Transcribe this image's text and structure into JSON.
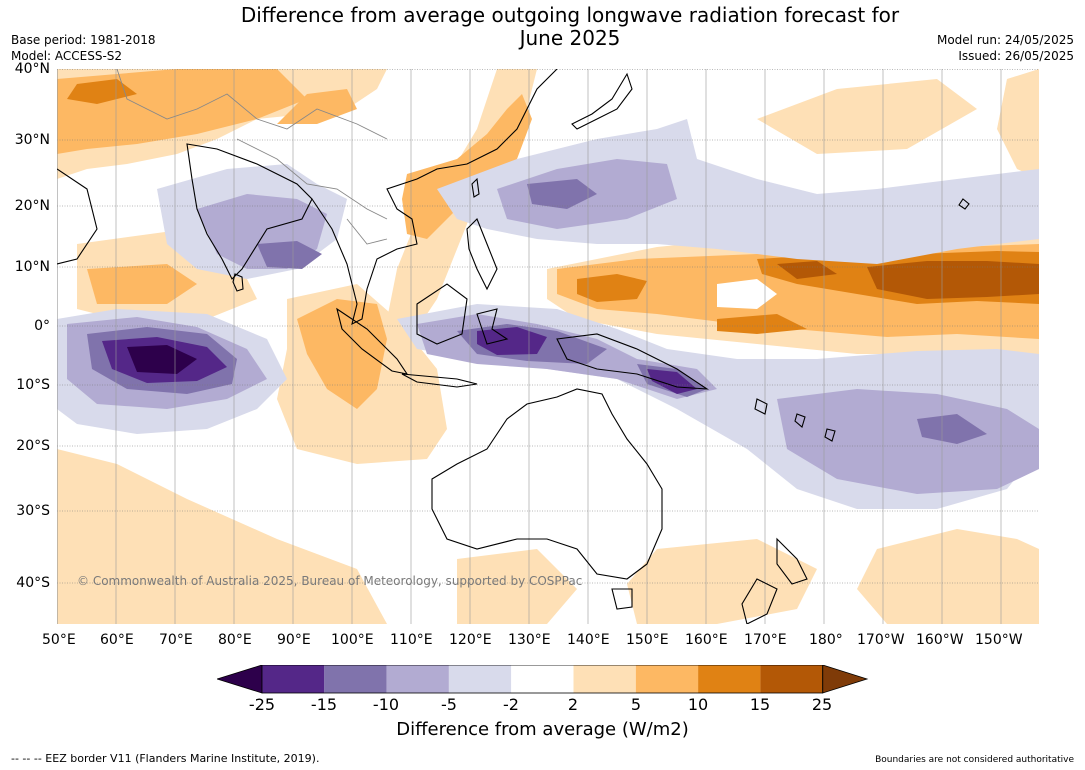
{
  "title_line1": "Difference from average outgoing longwave radiation forecast for",
  "title_line2": "June 2025",
  "base_period": "Base period: 1981-2018",
  "model": "Model: ACCESS-S2",
  "model_run": "Model run: 24/05/2025",
  "issued": "Issued: 26/05/2025",
  "lat_labels": [
    "40°N",
    "30°N",
    "20°N",
    "10°N",
    "0°",
    "10°S",
    "20°S",
    "30°S",
    "40°S"
  ],
  "lon_labels": [
    "50°E",
    "60°E",
    "70°E",
    "80°E",
    "90°E",
    "100°E",
    "110°E",
    "120°E",
    "130°E",
    "140°E",
    "150°E",
    "160°E",
    "170°E",
    "180°",
    "170°W",
    "160°W",
    "150°W"
  ],
  "copyright": "© Commonwealth of Australia 2025, Bureau of Meteorology, supported by COSPPac",
  "colorbar": {
    "ticks": [
      "-25",
      "-15",
      "-10",
      "-5",
      "-2",
      "2",
      "5",
      "10",
      "15",
      "25"
    ],
    "colors": [
      "#2d004b",
      "#542788",
      "#8073ac",
      "#b2abd2",
      "#d8daeb",
      "#ffffff",
      "#fee0b6",
      "#fdb863",
      "#e08214",
      "#b35806",
      "#7f3b08"
    ],
    "title": "Difference from average (W/m2)"
  },
  "footer_left": "--  --  -- EEZ border V11 (Flanders Marine Institute, 2019).",
  "footer_right": "Boundaries are not considered authoritative"
}
